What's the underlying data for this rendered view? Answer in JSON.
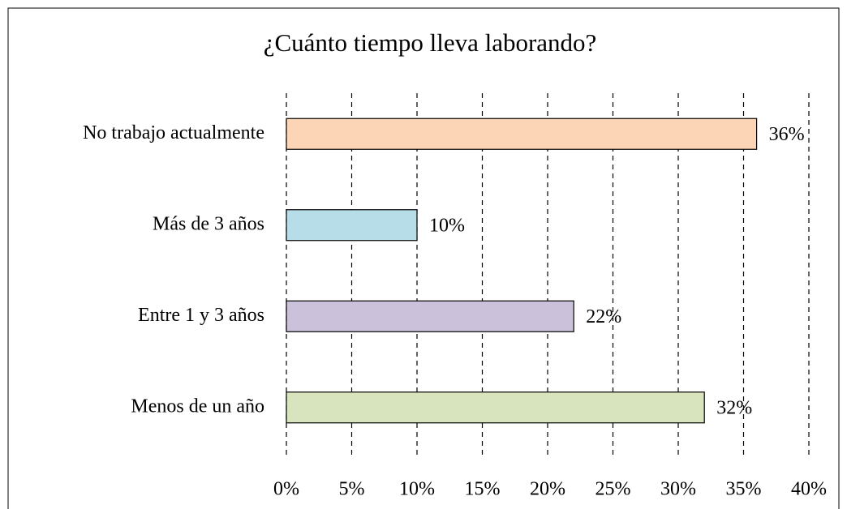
{
  "chart_data": {
    "type": "barh",
    "title": "¿Cuánto tiempo lleva laborando?",
    "categories": [
      "No trabajo actualmente",
      "Más  de 3 años",
      "Entre 1 y 3 años",
      "Menos de un año"
    ],
    "values": [
      36,
      10,
      22,
      32
    ],
    "value_labels": [
      "36%",
      "10%",
      "22%",
      "32%"
    ],
    "colors": [
      "#fbd5b5",
      "#b7dde8",
      "#ccc1da",
      "#d7e4bd"
    ],
    "xlim": [
      0,
      40
    ],
    "xticks": [
      {
        "value": 0,
        "label": "0%"
      },
      {
        "value": 5,
        "label": "5%"
      },
      {
        "value": 10,
        "label": "10%"
      },
      {
        "value": 15,
        "label": "15%"
      },
      {
        "value": 20,
        "label": "20%"
      },
      {
        "value": 25,
        "label": "25%"
      },
      {
        "value": 30,
        "label": "30%"
      },
      {
        "value": 35,
        "label": "35%"
      },
      {
        "value": 40,
        "label": "40%"
      }
    ],
    "grid": true
  }
}
